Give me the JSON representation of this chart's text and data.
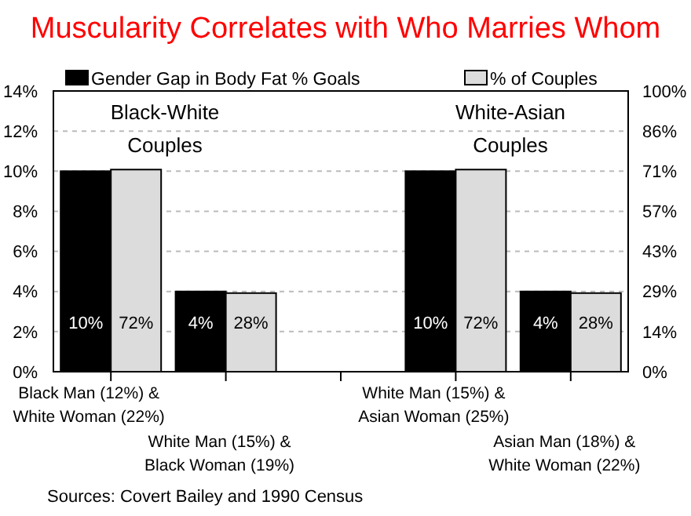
{
  "chart_data": {
    "type": "bar",
    "title": "Muscularity Correlates with Who Marries Whom",
    "categories": [
      "Black Man (12%) & White Woman (22%)",
      "White Man (15%) & Black Woman (19%)",
      null,
      "White Man (15%) & Asian Woman (25%)",
      "Asian Man (18%) & White Woman (22%)"
    ],
    "series": [
      {
        "name": "Gender Gap in Body Fat % Goals",
        "color": "#000000",
        "values": [
          10,
          4,
          null,
          10,
          4
        ],
        "value_labels": [
          "10%",
          "4%",
          null,
          "10%",
          "4%"
        ]
      },
      {
        "name": "% of Couples",
        "color": "#dcdcdc",
        "axis": "y2",
        "values": [
          72,
          28,
          null,
          72,
          28
        ],
        "value_labels": [
          "72%",
          "28%",
          null,
          "72%",
          "28%"
        ]
      }
    ],
    "ylim": [
      0,
      14
    ],
    "yticks": [
      {
        "value": 0,
        "label": "0%"
      },
      {
        "value": 2,
        "label": "2%"
      },
      {
        "value": 4,
        "label": "4%"
      },
      {
        "value": 6,
        "label": "6%"
      },
      {
        "value": 8,
        "label": "8%"
      },
      {
        "value": 10,
        "label": "10%"
      },
      {
        "value": 12,
        "label": "12%"
      },
      {
        "value": 14,
        "label": "14%"
      }
    ],
    "y2lim": [
      0,
      100
    ],
    "y2ticks": [
      {
        "value": 0,
        "label": "0%"
      },
      {
        "value": 14.29,
        "label": "14%"
      },
      {
        "value": 28.57,
        "label": "29%"
      },
      {
        "value": 42.86,
        "label": "43%"
      },
      {
        "value": 57.14,
        "label": "57%"
      },
      {
        "value": 71.43,
        "label": "71%"
      },
      {
        "value": 85.71,
        "label": "86%"
      },
      {
        "value": 100,
        "label": "100%"
      }
    ],
    "grid": "y",
    "legend": "top",
    "annotations": [
      "Black-White Couples",
      "White-Asian Couples",
      "Sources: Covert Bailey and 1990 Census"
    ]
  }
}
